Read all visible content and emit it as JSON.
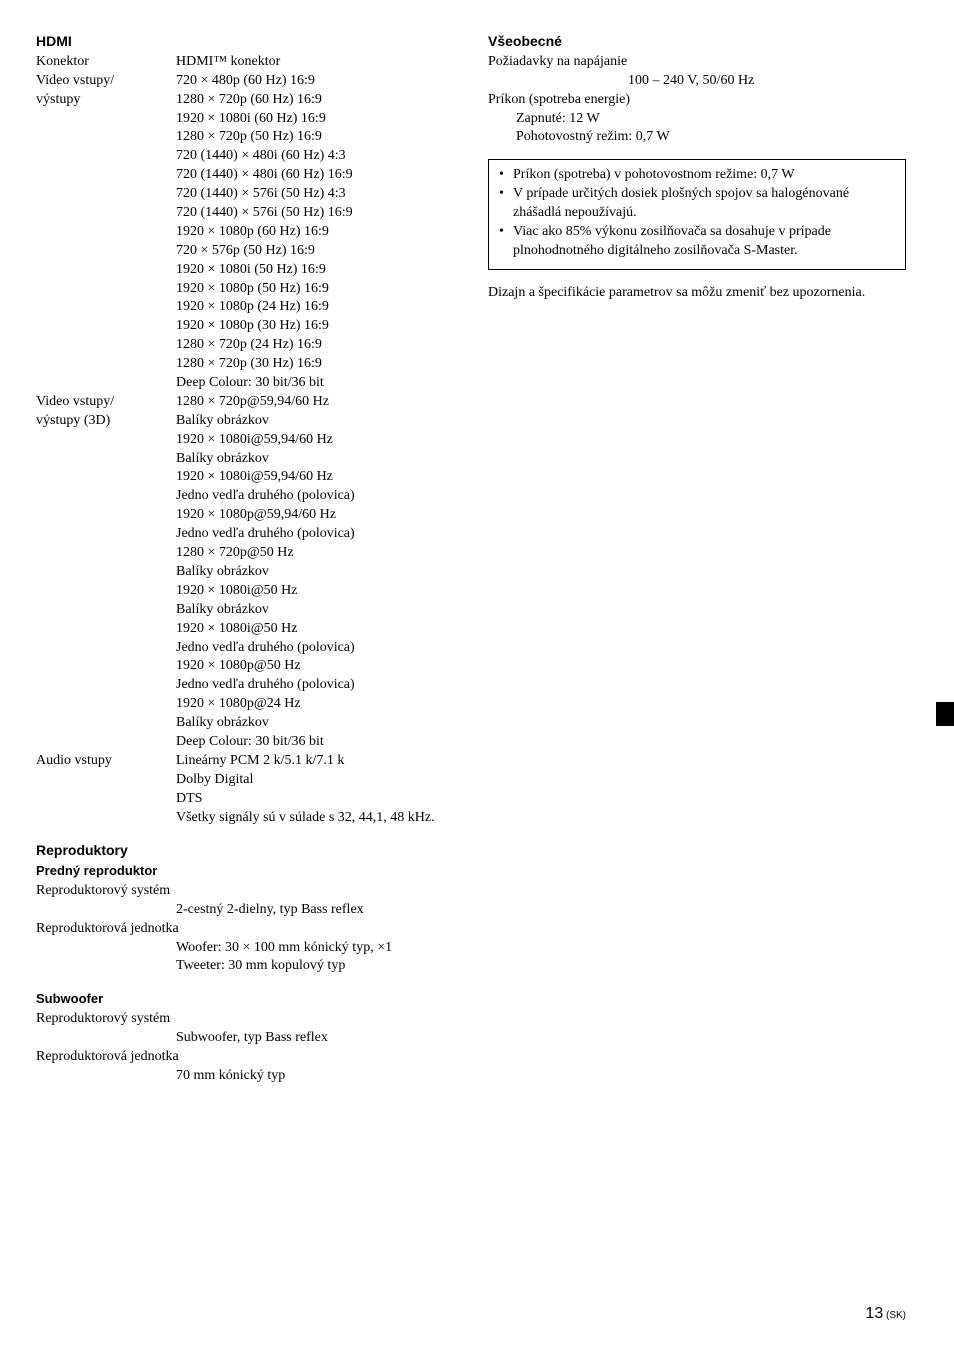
{
  "left": {
    "hdmi": {
      "title": "HDMI",
      "rows": [
        {
          "label": "Konektor",
          "lines": [
            "HDMI™ konektor"
          ]
        },
        {
          "label": "Video vstupy/",
          "lines": [
            "720 × 480p (60 Hz) 16:9"
          ]
        },
        {
          "label": "výstupy",
          "lines": [
            "1280 × 720p (60 Hz) 16:9",
            "1920 × 1080i (60 Hz) 16:9",
            "1280 × 720p (50 Hz) 16:9",
            "720 (1440) × 480i (60 Hz) 4:3",
            "720 (1440) × 480i (60 Hz) 16:9",
            "720 (1440) × 576i (50 Hz) 4:3",
            "720 (1440) × 576i (50 Hz) 16:9",
            "1920 × 1080p (60 Hz) 16:9",
            "720 × 576p (50 Hz) 16:9",
            "1920 × 1080i (50 Hz) 16:9",
            "1920 × 1080p (50 Hz) 16:9",
            "1920 × 1080p (24 Hz) 16:9",
            "1920 × 1080p (30 Hz) 16:9",
            "1280 × 720p (24 Hz) 16:9",
            "1280 × 720p (30 Hz) 16:9",
            "Deep Colour: 30 bit/36 bit"
          ]
        },
        {
          "label": "Video vstupy/",
          "lines": [
            "1280 × 720p@59,94/60 Hz"
          ]
        },
        {
          "label": "výstupy (3D)",
          "lines": [
            "Balíky obrázkov",
            "1920 × 1080i@59,94/60 Hz",
            "Balíky obrázkov",
            "1920 × 1080i@59,94/60 Hz",
            "Jedno vedľa druhého (polovica)",
            "1920 × 1080p@59,94/60 Hz",
            "Jedno vedľa druhého (polovica)",
            "1280 × 720p@50 Hz",
            "Balíky obrázkov",
            "1920 × 1080i@50 Hz",
            "Balíky obrázkov",
            "1920 × 1080i@50 Hz",
            "Jedno vedľa druhého (polovica)",
            "1920 × 1080p@50 Hz",
            "Jedno vedľa druhého (polovica)",
            "1920 × 1080p@24 Hz",
            "Balíky obrázkov",
            "Deep Colour: 30 bit/36 bit"
          ]
        },
        {
          "label": "Audio vstupy",
          "lines": [
            "Lineárny PCM 2 k/5.1 k/7.1 k",
            "Dolby Digital",
            "DTS",
            "Všetky signály sú v súlade s 32, 44,1, 48 kHz."
          ]
        }
      ]
    },
    "reproduktory": {
      "title": "Reproduktory",
      "front": {
        "title": "Predný reproduktor",
        "system_label": "Reproduktorový systém",
        "system_val": "2-cestný 2-dielny, typ Bass reflex",
        "unit_label": "Reproduktorová jednotka",
        "unit_vals": [
          "Woofer: 30 × 100 mm kónický typ, ×1",
          "Tweeter: 30 mm kopulový typ"
        ]
      },
      "sub": {
        "title": "Subwoofer",
        "system_label": "Reproduktorový systém",
        "system_val": "Subwoofer, typ Bass reflex",
        "unit_label": "Reproduktorová jednotka",
        "unit_val": "70 mm kónický typ"
      }
    }
  },
  "right": {
    "general": {
      "title": "Všeobecné",
      "power_label": "Požiadavky na napájanie",
      "power_val": "100 – 240 V, 50/60 Hz",
      "consumption_label": "Príkon (spotreba energie)",
      "on": "Zapnuté: 12 W",
      "standby": "Pohotovostný režim: 0,7 W"
    },
    "notes": [
      "Príkon (spotreba) v pohotovostnom režime: 0,7 W",
      "V prípade určitých dosiek plošných spojov sa halogénované zhášadlá nepoužívajú.",
      "Viac ako 85% výkonu zosilňovača sa dosahuje v prípade plnohodnotného digitálneho zosilňovača S-Master."
    ],
    "disclaimer": "Dizajn a špecifikácie parametrov sa môžu zmeniť bez upozornenia."
  },
  "page": {
    "num": "13",
    "suffix": " (SK)"
  }
}
